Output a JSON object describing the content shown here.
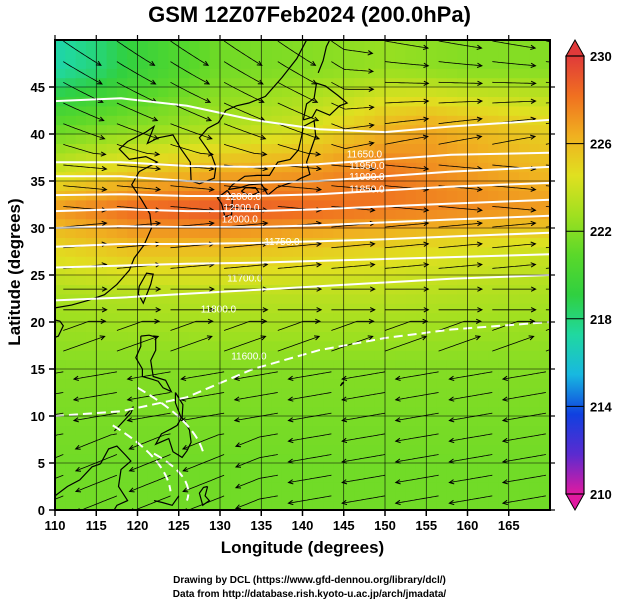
{
  "chart_data": {
    "type": "heatmap",
    "title": "GSM 12Z07Feb2024 (200.0hPa)",
    "xlabel": "Longitude (degrees)",
    "ylabel": "Latitude  (degrees)",
    "xlim": [
      110,
      170
    ],
    "ylim": [
      0,
      50
    ],
    "x_ticks": [
      110,
      115,
      120,
      125,
      130,
      135,
      140,
      145,
      150,
      155,
      160,
      165
    ],
    "y_ticks": [
      0,
      5,
      10,
      15,
      20,
      25,
      30,
      35,
      40,
      45
    ],
    "grid": true,
    "colorbar": {
      "range": [
        210,
        230
      ],
      "ticks": [
        210,
        214,
        218,
        222,
        226,
        230
      ],
      "placement": "right",
      "colors": [
        "#e01aa0",
        "#5a2bd0",
        "#1040e0",
        "#18b8e0",
        "#20d8a0",
        "#30d040",
        "#5ad82a",
        "#a0e020",
        "#e0e020",
        "#f0b020",
        "#f07020",
        "#e03a3a"
      ]
    },
    "contour_labels": [
      "12000.0",
      "12000.0",
      "12000.0",
      "11950.0",
      "11900.0",
      "11850.0",
      "11800.0",
      "11750.0",
      "11700.0",
      "11650.0",
      "11600.0"
    ],
    "temperature_field": [
      {
        "lat": 47,
        "lon": [
          110,
          115,
          120,
          125,
          130,
          140,
          150,
          160,
          170
        ],
        "values": [
          217,
          218,
          219.5,
          220.5,
          221.5,
          222,
          222.5,
          222,
          222
        ]
      },
      {
        "lat": 41,
        "lon": [
          110,
          120,
          130,
          140,
          145,
          150,
          155,
          160,
          170
        ],
        "values": [
          221,
          222,
          223,
          224,
          225,
          226,
          226.5,
          226,
          225
        ]
      },
      {
        "lat": 36,
        "lon": [
          110,
          120,
          130,
          140,
          145,
          150,
          160,
          170
        ],
        "values": [
          224,
          225.5,
          226.5,
          227,
          227.5,
          228,
          227,
          226
        ]
      },
      {
        "lat": 32,
        "lon": [
          110,
          120,
          130,
          140,
          150,
          160,
          170
        ],
        "values": [
          227,
          228.5,
          229,
          228.5,
          228,
          227.5,
          227
        ]
      },
      {
        "lat": 28,
        "lon": [
          110,
          120,
          130,
          140,
          150,
          160,
          170
        ],
        "values": [
          225,
          226,
          226,
          225.5,
          225,
          224.5,
          224
        ]
      },
      {
        "lat": 23,
        "lon": [
          110,
          130,
          150,
          170
        ],
        "values": [
          223,
          223.5,
          223.5,
          223
        ]
      },
      {
        "lat": 15,
        "lon": [
          110,
          130,
          150,
          170
        ],
        "values": [
          222,
          222,
          222,
          222
        ]
      },
      {
        "lat": 5,
        "lon": [
          110,
          130,
          150,
          170
        ],
        "values": [
          221.5,
          221.5,
          221.5,
          221.5
        ]
      }
    ],
    "colors": {
      "contour": "#ffffff",
      "streamline": "#000000",
      "coastline": "#000000",
      "axis": "#000000",
      "background": "#ffffff"
    }
  },
  "credits": {
    "line1": "Drawing by DCL (https://www.gfd-dennou.org/library/dcl/)",
    "line2": "Data from http://database.rish.kyoto-u.ac.jp/arch/jmadata/"
  }
}
